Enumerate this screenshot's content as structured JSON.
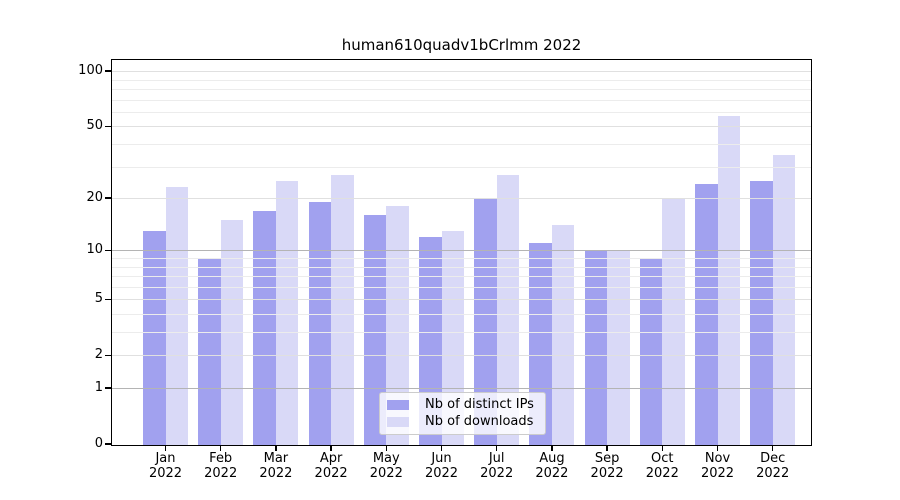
{
  "chart_data": {
    "type": "bar",
    "title": "human610quadv1bCrlmm 2022",
    "categories": [
      "Jan 2022",
      "Feb 2022",
      "Mar 2022",
      "Apr 2022",
      "May 2022",
      "Jun 2022",
      "Jul 2022",
      "Aug 2022",
      "Sep 2022",
      "Oct 2022",
      "Nov 2022",
      "Dec 2022"
    ],
    "x_tick_months": [
      "Jan",
      "Feb",
      "Mar",
      "Apr",
      "May",
      "Jun",
      "Jul",
      "Aug",
      "Sep",
      "Oct",
      "Nov",
      "Dec"
    ],
    "x_tick_year": "2022",
    "series": [
      {
        "name": "Nb of distinct IPs",
        "color": "#a1a1ef",
        "values": [
          13,
          9,
          17,
          19,
          16,
          12,
          20,
          11,
          10,
          9,
          24,
          25
        ]
      },
      {
        "name": "Nb of downloads",
        "color": "#d9d9f7",
        "values": [
          23,
          15,
          25,
          27,
          18,
          13,
          27,
          14,
          10,
          20,
          57,
          35
        ]
      }
    ],
    "y_scale": "log1p",
    "y_ticks": [
      0,
      1,
      2,
      5,
      10,
      20,
      50,
      100
    ],
    "y_minor_gridlines": [
      3,
      4,
      6,
      7,
      8,
      9,
      30,
      40,
      60,
      70,
      80,
      90
    ],
    "ylim": [
      0,
      115
    ],
    "grid": true,
    "legend_position": "lower center",
    "colors": {
      "grid_emphasis": "#b4b4b4",
      "grid_major": "#e0e0e0",
      "grid_minor": "#ececec",
      "axis": "#000000",
      "legend_border": "#cccccc"
    }
  }
}
